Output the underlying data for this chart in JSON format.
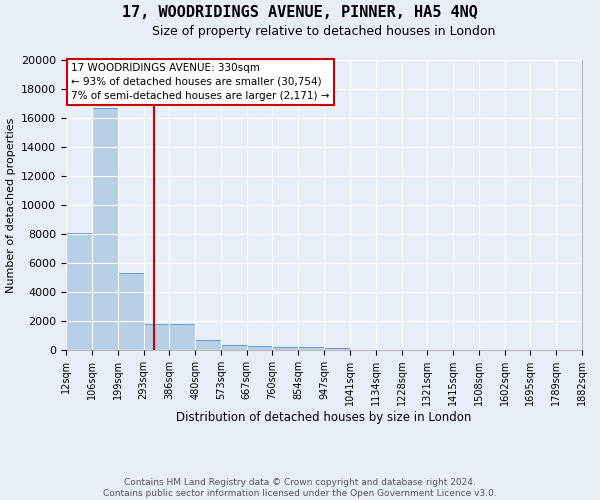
{
  "title_line1": "17, WOODRIDINGS AVENUE, PINNER, HA5 4NQ",
  "title_line2": "Size of property relative to detached houses in London",
  "xlabel": "Distribution of detached houses by size in London",
  "ylabel": "Number of detached properties",
  "bin_edges": [
    12,
    106,
    199,
    293,
    386,
    480,
    573,
    667,
    760,
    854,
    947,
    1041,
    1134,
    1228,
    1321,
    1415,
    1508,
    1602,
    1695,
    1789,
    1882
  ],
  "bar_heights": [
    8100,
    16700,
    5300,
    1800,
    1800,
    700,
    350,
    250,
    200,
    200,
    150,
    0,
    0,
    0,
    0,
    0,
    0,
    0,
    0,
    0
  ],
  "bar_color": "#b8cfe8",
  "bar_edge_color": "#6699cc",
  "bg_color": "#e8eef8",
  "grid_color": "#ffffff",
  "vline_x": 330,
  "vline_color": "#cc0000",
  "ylim": [
    0,
    20000
  ],
  "yticks": [
    0,
    2000,
    4000,
    6000,
    8000,
    10000,
    12000,
    14000,
    16000,
    18000,
    20000
  ],
  "annotation_text": "17 WOODRIDINGS AVENUE: 330sqm\n← 93% of detached houses are smaller (30,754)\n7% of semi-detached houses are larger (2,171) →",
  "annotation_box_color": "#ffffff",
  "annotation_box_edge": "#cc0000",
  "footer_text": "Contains HM Land Registry data © Crown copyright and database right 2024.\nContains public sector information licensed under the Open Government Licence v3.0.",
  "tick_labels": [
    "12sqm",
    "106sqm",
    "199sqm",
    "293sqm",
    "386sqm",
    "480sqm",
    "573sqm",
    "667sqm",
    "760sqm",
    "854sqm",
    "947sqm",
    "1041sqm",
    "1134sqm",
    "1228sqm",
    "1321sqm",
    "1415sqm",
    "1508sqm",
    "1602sqm",
    "1695sqm",
    "1789sqm",
    "1882sqm"
  ]
}
